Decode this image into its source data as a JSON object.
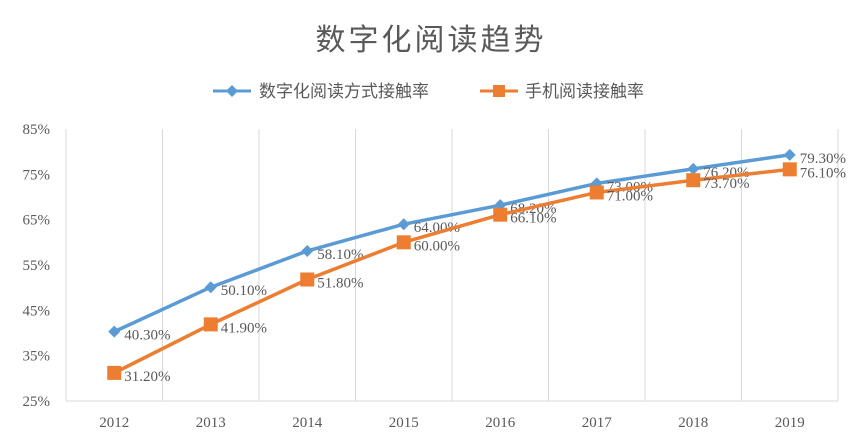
{
  "chart_data": {
    "type": "line",
    "title": "数字化阅读趋势",
    "categories": [
      "2012",
      "2013",
      "2014",
      "2015",
      "2016",
      "2017",
      "2018",
      "2019"
    ],
    "y_ticks": [
      "85%",
      "75%",
      "65%",
      "55%",
      "45%",
      "35%",
      "25%"
    ],
    "ylim": [
      25,
      85
    ],
    "grid": "vertical",
    "legend_position": "top",
    "series": [
      {
        "name": "数字化阅读方式接触率",
        "marker": "diamond",
        "color": "#5B9BD5",
        "values": [
          40.3,
          50.1,
          58.1,
          64.0,
          68.2,
          73.0,
          76.2,
          79.3
        ],
        "labels": [
          "40.30%",
          "50.10%",
          "58.10%",
          "64.00%",
          "68.20%",
          "73.00%",
          "76.20%",
          "79.30%"
        ]
      },
      {
        "name": "手机阅读接触率",
        "marker": "square",
        "color": "#ED7D31",
        "values": [
          31.2,
          41.9,
          51.8,
          60.0,
          66.1,
          71.0,
          73.7,
          76.1
        ],
        "labels": [
          "31.20%",
          "41.90%",
          "51.80%",
          "60.00%",
          "66.10%",
          "71.00%",
          "73.70%",
          "76.10%"
        ]
      }
    ]
  }
}
